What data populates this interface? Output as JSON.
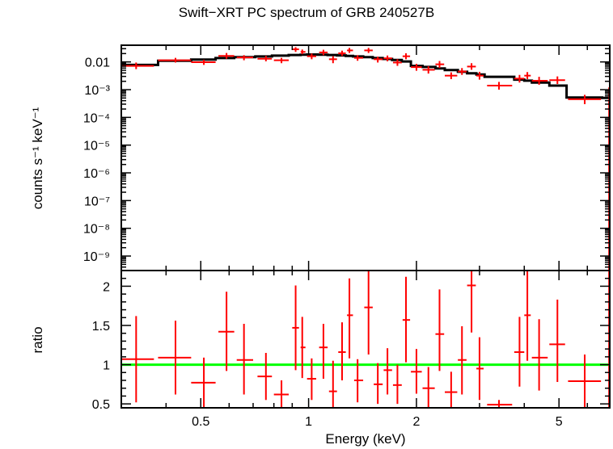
{
  "chart_data": [
    {
      "type": "scatter",
      "title": "Swift−XRT PC spectrum of GRB 240527B",
      "ylabel": "counts s⁻¹ keV⁻¹",
      "yscale": "log",
      "xscale": "log",
      "ylim": [
        3e-10,
        0.04
      ],
      "yticks": [
        {
          "value": 0.01,
          "label": "0.01"
        },
        {
          "value": 0.001,
          "label": "10⁻³"
        },
        {
          "value": 0.0001,
          "label": "10⁻⁴"
        },
        {
          "value": 1e-05,
          "label": "10⁻⁵"
        },
        {
          "value": 1e-06,
          "label": "10⁻⁶"
        },
        {
          "value": 1e-07,
          "label": "10⁻⁷"
        },
        {
          "value": 1e-08,
          "label": "10⁻⁸"
        },
        {
          "value": 1e-09,
          "label": "10⁻⁹"
        }
      ],
      "series": [
        {
          "kind": "data",
          "color": "#ff0000",
          "points": [
            {
              "x": 0.33,
              "xlo": 0.3,
              "xhi": 0.37,
              "y": 0.0072,
              "ylo": 0.0055,
              "yhi": 0.0095
            },
            {
              "x": 0.425,
              "xlo": 0.38,
              "xhi": 0.47,
              "y": 0.0115,
              "ylo": 0.0095,
              "yhi": 0.014
            },
            {
              "x": 0.51,
              "xlo": 0.47,
              "xhi": 0.55,
              "y": 0.0098,
              "ylo": 0.0078,
              "yhi": 0.012
            },
            {
              "x": 0.59,
              "xlo": 0.56,
              "xhi": 0.62,
              "y": 0.0165,
              "ylo": 0.013,
              "yhi": 0.021
            },
            {
              "x": 0.66,
              "xlo": 0.63,
              "xhi": 0.7,
              "y": 0.0145,
              "ylo": 0.0115,
              "yhi": 0.0175
            },
            {
              "x": 0.76,
              "xlo": 0.72,
              "xhi": 0.79,
              "y": 0.013,
              "ylo": 0.0105,
              "yhi": 0.0165
            },
            {
              "x": 0.84,
              "xlo": 0.8,
              "xhi": 0.88,
              "y": 0.0115,
              "ylo": 0.009,
              "yhi": 0.014
            },
            {
              "x": 0.92,
              "xlo": 0.9,
              "xhi": 0.94,
              "y": 0.0285,
              "ylo": 0.023,
              "yhi": 0.034
            },
            {
              "x": 0.96,
              "xlo": 0.95,
              "xhi": 0.98,
              "y": 0.023,
              "ylo": 0.019,
              "yhi": 0.028
            },
            {
              "x": 1.02,
              "xlo": 0.99,
              "xhi": 1.05,
              "y": 0.016,
              "ylo": 0.0125,
              "yhi": 0.02
            },
            {
              "x": 1.1,
              "xlo": 1.07,
              "xhi": 1.13,
              "y": 0.022,
              "ylo": 0.0175,
              "yhi": 0.0275
            },
            {
              "x": 1.17,
              "xlo": 1.14,
              "xhi": 1.2,
              "y": 0.0125,
              "ylo": 0.009,
              "yhi": 0.016
            },
            {
              "x": 1.24,
              "xlo": 1.21,
              "xhi": 1.27,
              "y": 0.0205,
              "ylo": 0.0165,
              "yhi": 0.0255
            },
            {
              "x": 1.3,
              "xlo": 1.28,
              "xhi": 1.33,
              "y": 0.026,
              "ylo": 0.021,
              "yhi": 0.032
            },
            {
              "x": 1.37,
              "xlo": 1.34,
              "xhi": 1.42,
              "y": 0.014,
              "ylo": 0.011,
              "yhi": 0.0175
            },
            {
              "x": 1.47,
              "xlo": 1.43,
              "xhi": 1.51,
              "y": 0.026,
              "ylo": 0.021,
              "yhi": 0.032
            },
            {
              "x": 1.56,
              "xlo": 1.52,
              "xhi": 1.61,
              "y": 0.0125,
              "ylo": 0.0095,
              "yhi": 0.0155
            },
            {
              "x": 1.66,
              "xlo": 1.62,
              "xhi": 1.71,
              "y": 0.0135,
              "ylo": 0.0105,
              "yhi": 0.017
            },
            {
              "x": 1.77,
              "xlo": 1.72,
              "xhi": 1.82,
              "y": 0.0095,
              "ylo": 0.0072,
              "yhi": 0.0125
            },
            {
              "x": 1.87,
              "xlo": 1.83,
              "xhi": 1.92,
              "y": 0.016,
              "ylo": 0.0125,
              "yhi": 0.0205
            },
            {
              "x": 2.0,
              "xlo": 1.93,
              "xhi": 2.07,
              "y": 0.0065,
              "ylo": 0.0048,
              "yhi": 0.0085
            },
            {
              "x": 2.16,
              "xlo": 2.08,
              "xhi": 2.25,
              "y": 0.0052,
              "ylo": 0.0038,
              "yhi": 0.007
            },
            {
              "x": 2.32,
              "xlo": 2.26,
              "xhi": 2.39,
              "y": 0.0082,
              "ylo": 0.006,
              "yhi": 0.0108
            },
            {
              "x": 2.5,
              "xlo": 2.4,
              "xhi": 2.6,
              "y": 0.0032,
              "ylo": 0.0024,
              "yhi": 0.0042
            },
            {
              "x": 2.68,
              "xlo": 2.61,
              "xhi": 2.76,
              "y": 0.0045,
              "ylo": 0.0034,
              "yhi": 0.006
            },
            {
              "x": 2.85,
              "xlo": 2.77,
              "xhi": 2.93,
              "y": 0.0068,
              "ylo": 0.0052,
              "yhi": 0.009
            },
            {
              "x": 3.0,
              "xlo": 2.94,
              "xhi": 3.08,
              "y": 0.0032,
              "ylo": 0.0023,
              "yhi": 0.0044
            },
            {
              "x": 3.4,
              "xlo": 3.15,
              "xhi": 3.7,
              "y": 0.0014,
              "ylo": 0.001,
              "yhi": 0.0019
            },
            {
              "x": 3.88,
              "xlo": 3.75,
              "xhi": 4.0,
              "y": 0.0025,
              "ylo": 0.0018,
              "yhi": 0.0034
            },
            {
              "x": 4.08,
              "xlo": 4.0,
              "xhi": 4.17,
              "y": 0.0032,
              "ylo": 0.0024,
              "yhi": 0.0043
            },
            {
              "x": 4.4,
              "xlo": 4.2,
              "xhi": 4.65,
              "y": 0.0021,
              "ylo": 0.0015,
              "yhi": 0.0029
            },
            {
              "x": 4.95,
              "xlo": 4.7,
              "xhi": 5.2,
              "y": 0.0022,
              "ylo": 0.0016,
              "yhi": 0.003
            },
            {
              "x": 5.9,
              "xlo": 5.3,
              "xhi": 6.55,
              "y": 0.00045,
              "ylo": 0.0003,
              "yhi": 0.00065
            },
            {
              "x": 6.9,
              "xlo": 6.88,
              "xhi": 6.93,
              "y": 0.0003,
              "ylo": 3e-10,
              "yhi": 0.0012
            }
          ]
        },
        {
          "kind": "model",
          "color": "#000000",
          "steps": [
            {
              "xlo": 0.3,
              "xhi": 0.38,
              "y": 0.0078
            },
            {
              "xlo": 0.38,
              "xhi": 0.47,
              "y": 0.011
            },
            {
              "xlo": 0.47,
              "xhi": 0.55,
              "y": 0.0122
            },
            {
              "xlo": 0.55,
              "xhi": 0.62,
              "y": 0.0138
            },
            {
              "xlo": 0.62,
              "xhi": 0.71,
              "y": 0.0148
            },
            {
              "xlo": 0.71,
              "xhi": 0.79,
              "y": 0.0158
            },
            {
              "xlo": 0.79,
              "xhi": 0.88,
              "y": 0.0168
            },
            {
              "xlo": 0.88,
              "xhi": 0.95,
              "y": 0.0178
            },
            {
              "xlo": 0.95,
              "xhi": 0.99,
              "y": 0.0182
            },
            {
              "xlo": 0.99,
              "xhi": 1.06,
              "y": 0.0185
            },
            {
              "xlo": 1.06,
              "xhi": 1.13,
              "y": 0.0182
            },
            {
              "xlo": 1.13,
              "xhi": 1.2,
              "y": 0.0178
            },
            {
              "xlo": 1.2,
              "xhi": 1.27,
              "y": 0.0172
            },
            {
              "xlo": 1.27,
              "xhi": 1.33,
              "y": 0.0165
            },
            {
              "xlo": 1.33,
              "xhi": 1.42,
              "y": 0.0157
            },
            {
              "xlo": 1.42,
              "xhi": 1.51,
              "y": 0.0148
            },
            {
              "xlo": 1.51,
              "xhi": 1.61,
              "y": 0.0138
            },
            {
              "xlo": 1.61,
              "xhi": 1.71,
              "y": 0.0128
            },
            {
              "xlo": 1.71,
              "xhi": 1.82,
              "y": 0.0118
            },
            {
              "xlo": 1.82,
              "xhi": 1.93,
              "y": 0.0104
            },
            {
              "xlo": 1.93,
              "xhi": 2.08,
              "y": 0.0072
            },
            {
              "xlo": 2.08,
              "xhi": 2.26,
              "y": 0.0066
            },
            {
              "xlo": 2.26,
              "xhi": 2.4,
              "y": 0.0058
            },
            {
              "xlo": 2.4,
              "xhi": 2.61,
              "y": 0.0051
            },
            {
              "xlo": 2.61,
              "xhi": 2.77,
              "y": 0.0044
            },
            {
              "xlo": 2.77,
              "xhi": 2.94,
              "y": 0.0039
            },
            {
              "xlo": 2.94,
              "xhi": 3.1,
              "y": 0.0035
            },
            {
              "xlo": 3.1,
              "xhi": 3.75,
              "y": 0.0029
            },
            {
              "xlo": 3.75,
              "xhi": 4.0,
              "y": 0.0023
            },
            {
              "xlo": 4.0,
              "xhi": 4.2,
              "y": 0.0021
            },
            {
              "xlo": 4.2,
              "xhi": 4.7,
              "y": 0.0018
            },
            {
              "xlo": 4.7,
              "xhi": 5.25,
              "y": 0.0014
            },
            {
              "xlo": 5.25,
              "xhi": 6.6,
              "y": 0.00052
            },
            {
              "xlo": 6.6,
              "xhi": 6.93,
              "y": 0.0005
            }
          ]
        }
      ]
    },
    {
      "type": "scatter",
      "xlabel": "Energy (keV)",
      "ylabel": "ratio",
      "xscale": "log",
      "xlim": [
        0.3,
        6.93
      ],
      "ylim": [
        0.45,
        2.2
      ],
      "xticks": [
        {
          "value": 0.5,
          "label": "0.5"
        },
        {
          "value": 1,
          "label": "1"
        },
        {
          "value": 2,
          "label": "2"
        },
        {
          "value": 5,
          "label": "5"
        }
      ],
      "yticks": [
        {
          "value": 0.5,
          "label": "0.5"
        },
        {
          "value": 1,
          "label": "1"
        },
        {
          "value": 1.5,
          "label": "1.5"
        },
        {
          "value": 2,
          "label": "2"
        }
      ],
      "reference_line": {
        "y": 1,
        "color": "#00ff00"
      },
      "series": [
        {
          "kind": "ratio",
          "color": "#ff0000",
          "points": [
            {
              "x": 0.33,
              "xlo": 0.3,
              "xhi": 0.37,
              "y": 1.07,
              "ylo": 0.52,
              "yhi": 1.62
            },
            {
              "x": 0.425,
              "xlo": 0.38,
              "xhi": 0.47,
              "y": 1.09,
              "ylo": 0.62,
              "yhi": 1.56
            },
            {
              "x": 0.51,
              "xlo": 0.47,
              "xhi": 0.55,
              "y": 0.77,
              "ylo": 0.45,
              "yhi": 1.09
            },
            {
              "x": 0.59,
              "xlo": 0.56,
              "xhi": 0.62,
              "y": 1.42,
              "ylo": 0.92,
              "yhi": 1.93
            },
            {
              "x": 0.66,
              "xlo": 0.63,
              "xhi": 0.7,
              "y": 1.06,
              "ylo": 0.62,
              "yhi": 1.52
            },
            {
              "x": 0.76,
              "xlo": 0.72,
              "xhi": 0.79,
              "y": 0.85,
              "ylo": 0.55,
              "yhi": 1.15
            },
            {
              "x": 0.84,
              "xlo": 0.8,
              "xhi": 0.88,
              "y": 0.62,
              "ylo": 0.45,
              "yhi": 0.8
            },
            {
              "x": 0.92,
              "xlo": 0.9,
              "xhi": 0.94,
              "y": 1.47,
              "ylo": 0.93,
              "yhi": 2.01
            },
            {
              "x": 0.96,
              "xlo": 0.95,
              "xhi": 0.98,
              "y": 1.22,
              "ylo": 0.83,
              "yhi": 1.61
            },
            {
              "x": 1.02,
              "xlo": 0.99,
              "xhi": 1.05,
              "y": 0.82,
              "ylo": 0.55,
              "yhi": 1.08
            },
            {
              "x": 1.1,
              "xlo": 1.07,
              "xhi": 1.13,
              "y": 1.22,
              "ylo": 0.82,
              "yhi": 1.52
            },
            {
              "x": 1.17,
              "xlo": 1.14,
              "xhi": 1.2,
              "y": 0.66,
              "ylo": 0.45,
              "yhi": 1.05
            },
            {
              "x": 1.24,
              "xlo": 1.21,
              "xhi": 1.27,
              "y": 1.16,
              "ylo": 0.8,
              "yhi": 1.54
            },
            {
              "x": 1.3,
              "xlo": 1.28,
              "xhi": 1.33,
              "y": 1.63,
              "ylo": 1.08,
              "yhi": 2.1
            },
            {
              "x": 1.37,
              "xlo": 1.34,
              "xhi": 1.42,
              "y": 0.8,
              "ylo": 0.52,
              "yhi": 1.07
            },
            {
              "x": 1.47,
              "xlo": 1.43,
              "xhi": 1.51,
              "y": 1.73,
              "ylo": 1.13,
              "yhi": 2.2
            },
            {
              "x": 1.56,
              "xlo": 1.52,
              "xhi": 1.61,
              "y": 0.75,
              "ylo": 0.5,
              "yhi": 1.02
            },
            {
              "x": 1.66,
              "xlo": 1.62,
              "xhi": 1.71,
              "y": 0.93,
              "ylo": 0.62,
              "yhi": 1.21
            },
            {
              "x": 1.77,
              "xlo": 1.72,
              "xhi": 1.82,
              "y": 0.74,
              "ylo": 0.5,
              "yhi": 1.0
            },
            {
              "x": 1.87,
              "xlo": 1.83,
              "xhi": 1.92,
              "y": 1.57,
              "ylo": 1.03,
              "yhi": 2.12
            },
            {
              "x": 2.0,
              "xlo": 1.93,
              "xhi": 2.07,
              "y": 0.91,
              "ylo": 0.63,
              "yhi": 1.2
            },
            {
              "x": 2.16,
              "xlo": 2.08,
              "xhi": 2.25,
              "y": 0.7,
              "ylo": 0.45,
              "yhi": 0.97
            },
            {
              "x": 2.32,
              "xlo": 2.26,
              "xhi": 2.39,
              "y": 1.39,
              "ylo": 0.92,
              "yhi": 1.96
            },
            {
              "x": 2.5,
              "xlo": 2.4,
              "xhi": 2.6,
              "y": 0.65,
              "ylo": 0.45,
              "yhi": 0.91
            },
            {
              "x": 2.68,
              "xlo": 2.61,
              "xhi": 2.76,
              "y": 1.06,
              "ylo": 0.62,
              "yhi": 1.49
            },
            {
              "x": 2.85,
              "xlo": 2.77,
              "xhi": 2.93,
              "y": 2.01,
              "ylo": 1.41,
              "yhi": 2.2
            },
            {
              "x": 3.0,
              "xlo": 2.94,
              "xhi": 3.08,
              "y": 0.95,
              "ylo": 0.55,
              "yhi": 1.35
            },
            {
              "x": 3.4,
              "xlo": 3.15,
              "xhi": 3.7,
              "y": 0.49,
              "ylo": 0.45,
              "yhi": 0.55
            },
            {
              "x": 3.88,
              "xlo": 3.75,
              "xhi": 4.0,
              "y": 1.16,
              "ylo": 0.72,
              "yhi": 1.61
            },
            {
              "x": 4.08,
              "xlo": 4.0,
              "xhi": 4.17,
              "y": 1.63,
              "ylo": 1.05,
              "yhi": 2.2
            },
            {
              "x": 4.4,
              "xlo": 4.2,
              "xhi": 4.65,
              "y": 1.09,
              "ylo": 0.67,
              "yhi": 1.58
            },
            {
              "x": 4.95,
              "xlo": 4.7,
              "xhi": 5.2,
              "y": 1.26,
              "ylo": 0.78,
              "yhi": 1.83
            },
            {
              "x": 5.9,
              "xlo": 5.3,
              "xhi": 6.55,
              "y": 0.79,
              "ylo": 0.45,
              "yhi": 1.13
            },
            {
              "x": 6.9,
              "xlo": 6.88,
              "xhi": 6.93,
              "y": 1.0,
              "ylo": 0.45,
              "yhi": 2.2
            }
          ]
        }
      ]
    }
  ]
}
